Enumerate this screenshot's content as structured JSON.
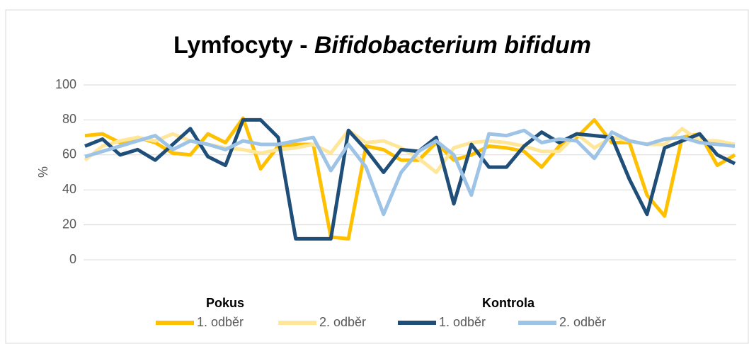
{
  "chart_data": {
    "type": "line",
    "title": "Lymfocyty -",
    "title_italic": "Bifidobacterium bifidum",
    "y_label": "%",
    "ylim": [
      0,
      100
    ],
    "yticks": [
      0,
      20,
      40,
      60,
      80,
      100
    ],
    "grid": true,
    "legend_groups": [
      "Pokus",
      "Kontrola"
    ],
    "categories": [
      null,
      null,
      null,
      null,
      null,
      null,
      null,
      null,
      null,
      null,
      null,
      null,
      null,
      null,
      null,
      null,
      null,
      null,
      null,
      null,
      null,
      null,
      null,
      null,
      null,
      null,
      null,
      null,
      null,
      null,
      null,
      null,
      null,
      null,
      null,
      null,
      null,
      null
    ],
    "series": [
      {
        "name": "1. odběr",
        "color": "#FFC000",
        "values": [
          71,
          72,
          67,
          70,
          67,
          61,
          60,
          72,
          67,
          81,
          52,
          65,
          66,
          66,
          13,
          12,
          65,
          63,
          57,
          57,
          67,
          57,
          60,
          65,
          64,
          62,
          53,
          65,
          70,
          80,
          67,
          67,
          37,
          25,
          70,
          72,
          54,
          60
        ]
      },
      {
        "name": "2. odběr",
        "color": "#FFE699",
        "values": [
          57,
          65,
          68,
          70,
          68,
          72,
          68,
          66,
          64,
          63,
          61,
          63,
          64,
          66,
          61,
          74,
          67,
          68,
          64,
          58,
          50,
          64,
          67,
          68,
          67,
          65,
          62,
          62,
          72,
          64,
          70,
          68,
          66,
          66,
          75,
          68,
          68,
          66
        ]
      },
      {
        "name": "1. odběr",
        "color": "#1F4E79",
        "values": [
          65,
          69,
          60,
          63,
          57,
          66,
          75,
          59,
          54,
          80,
          80,
          70,
          12,
          12,
          12,
          74,
          63,
          50,
          63,
          62,
          70,
          32,
          66,
          53,
          53,
          65,
          73,
          67,
          72,
          71,
          70,
          46,
          26,
          64,
          68,
          72,
          60,
          55
        ]
      },
      {
        "name": "2. odběr",
        "color": "#9DC3E6",
        "values": [
          59,
          62,
          65,
          68,
          71,
          63,
          68,
          66,
          63,
          68,
          66,
          66,
          68,
          70,
          51,
          66,
          53,
          26,
          50,
          62,
          68,
          60,
          37,
          72,
          71,
          74,
          67,
          69,
          68,
          58,
          73,
          68,
          66,
          69,
          70,
          67,
          66,
          65
        ]
      }
    ]
  }
}
